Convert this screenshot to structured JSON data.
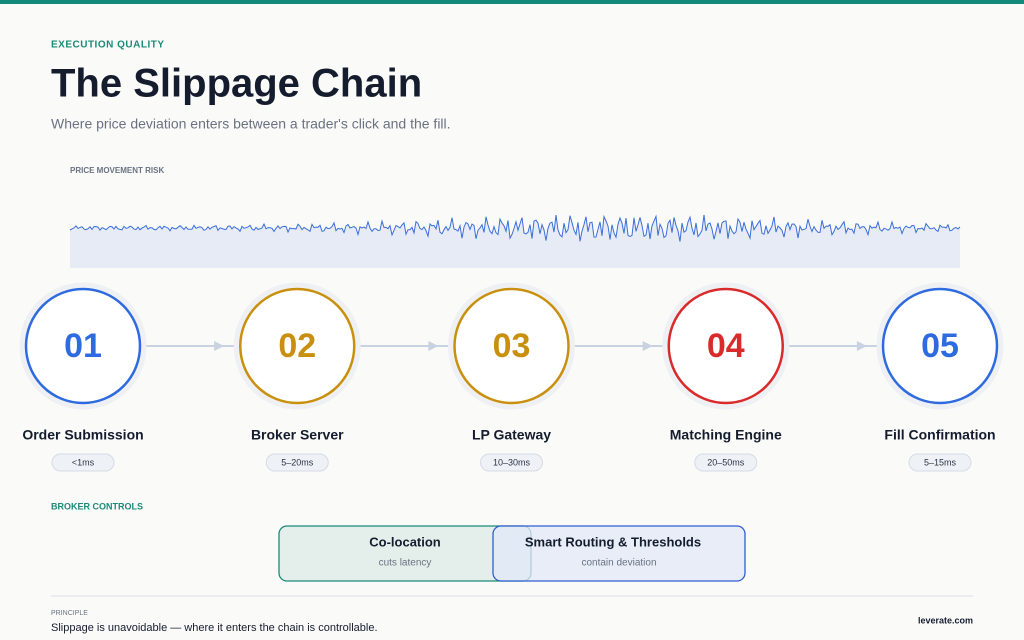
{
  "header": {
    "eyebrow": "EXECUTION QUALITY",
    "title": "The Slippage Chain",
    "subtitle": "Where price deviation enters between a trader's click and the fill."
  },
  "risk_label": "PRICE MOVEMENT RISK",
  "steps": [
    {
      "number": "01",
      "label": "Order Submission",
      "latency": "<1ms",
      "color": "#2f6be0"
    },
    {
      "number": "02",
      "label": "Broker Server",
      "latency": "5–20ms",
      "color": "#c8900e"
    },
    {
      "number": "03",
      "label": "LP Gateway",
      "latency": "10–30ms",
      "color": "#c8900e"
    },
    {
      "number": "04",
      "label": "Matching Engine",
      "latency": "20–50ms",
      "color": "#d92b2b"
    },
    {
      "number": "05",
      "label": "Fill Confirmation",
      "latency": "5–15ms",
      "color": "#2f6be0"
    }
  ],
  "controls": {
    "label": "BROKER CONTROLS",
    "items": [
      {
        "title": "Co-location",
        "subtitle": "cuts latency",
        "color": "#1b8a78"
      },
      {
        "title": "Smart Routing & Thresholds",
        "subtitle": "contain deviation",
        "color": "#2f5fd0"
      }
    ]
  },
  "footer": {
    "label": "PRINCIPLE",
    "text": "Slippage is unavoidable — where it enters the chain is controllable.",
    "brand": "leverate.com"
  }
}
